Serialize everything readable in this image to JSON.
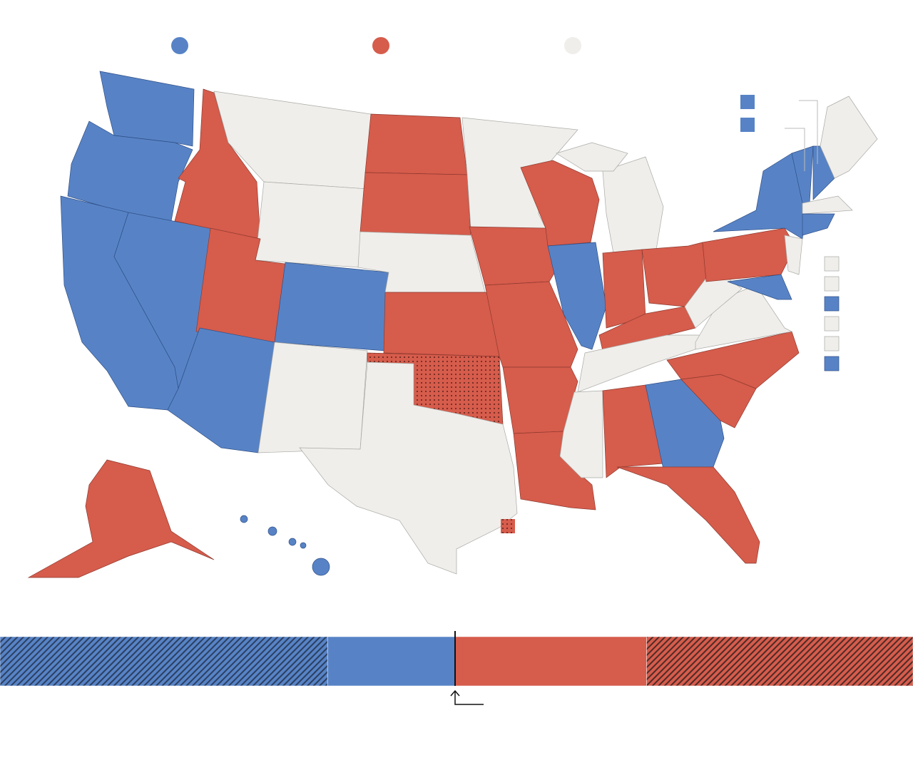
{
  "chart_data": {
    "type": "stacked-bar",
    "values": [
      193,
      75,
      113,
      157
    ],
    "colors": [
      "#5783c6",
      "#5783c6",
      "#d65c4c",
      "#d65c4c"
    ],
    "xlim": [
      0,
      538
    ]
  }
}
